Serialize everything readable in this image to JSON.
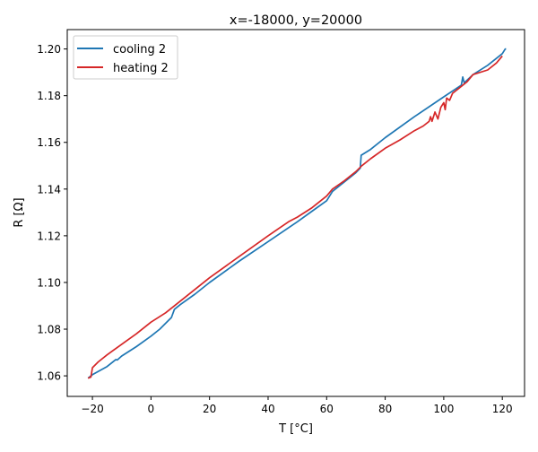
{
  "chart_data": {
    "type": "line",
    "title": "x=-18000, y=20000",
    "xlabel": "T [°C]",
    "ylabel": "R [Ω]",
    "xlim": [
      -28.6,
      127.6
    ],
    "ylim": [
      1.0512,
      1.2083
    ],
    "xticks": [
      -20,
      0,
      20,
      40,
      60,
      80,
      100,
      120
    ],
    "xtick_labels": [
      "−20",
      "0",
      "20",
      "40",
      "60",
      "80",
      "100",
      "120"
    ],
    "yticks": [
      1.06,
      1.08,
      1.1,
      1.12,
      1.14,
      1.16,
      1.18,
      1.2
    ],
    "ytick_labels": [
      "1.06",
      "1.08",
      "1.10",
      "1.12",
      "1.14",
      "1.16",
      "1.18",
      "1.20"
    ],
    "grid": false,
    "legend_position": "top-left",
    "series": [
      {
        "name": "cooling 2",
        "color": "#1f77b4",
        "x": [
          -21.5,
          -20,
          -15,
          -12,
          -11.5,
          -10,
          -5,
          0,
          3,
          5,
          7,
          8,
          10,
          15,
          20,
          30,
          40,
          50,
          55,
          60,
          62,
          70,
          71.5,
          71.8,
          75,
          80,
          90,
          100,
          106,
          106.5,
          107,
          110,
          115,
          120,
          121,
          121.3
        ],
        "y": [
          1.059,
          1.0605,
          1.064,
          1.067,
          1.0668,
          1.0685,
          1.0725,
          1.077,
          1.08,
          1.0825,
          1.085,
          1.0885,
          1.0905,
          1.095,
          1.1,
          1.109,
          1.1175,
          1.126,
          1.1305,
          1.135,
          1.139,
          1.147,
          1.149,
          1.1545,
          1.157,
          1.162,
          1.171,
          1.1795,
          1.1845,
          1.188,
          1.1855,
          1.189,
          1.193,
          1.198,
          1.2,
          1.2
        ]
      },
      {
        "name": "heating 2",
        "color": "#d62728",
        "x": [
          -21.5,
          -20.5,
          -20,
          -18,
          -15,
          -10,
          -5,
          0,
          5,
          10,
          20,
          30,
          40,
          47,
          50,
          55,
          60,
          62,
          66,
          70,
          72,
          75,
          80,
          85,
          90,
          93,
          95,
          95.5,
          96,
          97,
          98,
          99,
          100,
          100.5,
          101,
          102,
          103,
          105,
          108,
          110,
          115,
          118,
          120
        ],
        "y": [
          1.059,
          1.0595,
          1.0635,
          1.066,
          1.069,
          1.0735,
          1.078,
          1.083,
          1.087,
          1.092,
          1.102,
          1.111,
          1.12,
          1.126,
          1.128,
          1.132,
          1.137,
          1.14,
          1.1435,
          1.1475,
          1.15,
          1.153,
          1.1575,
          1.161,
          1.165,
          1.167,
          1.169,
          1.171,
          1.169,
          1.173,
          1.17,
          1.175,
          1.177,
          1.174,
          1.179,
          1.178,
          1.181,
          1.183,
          1.186,
          1.189,
          1.191,
          1.194,
          1.197
        ]
      }
    ]
  }
}
